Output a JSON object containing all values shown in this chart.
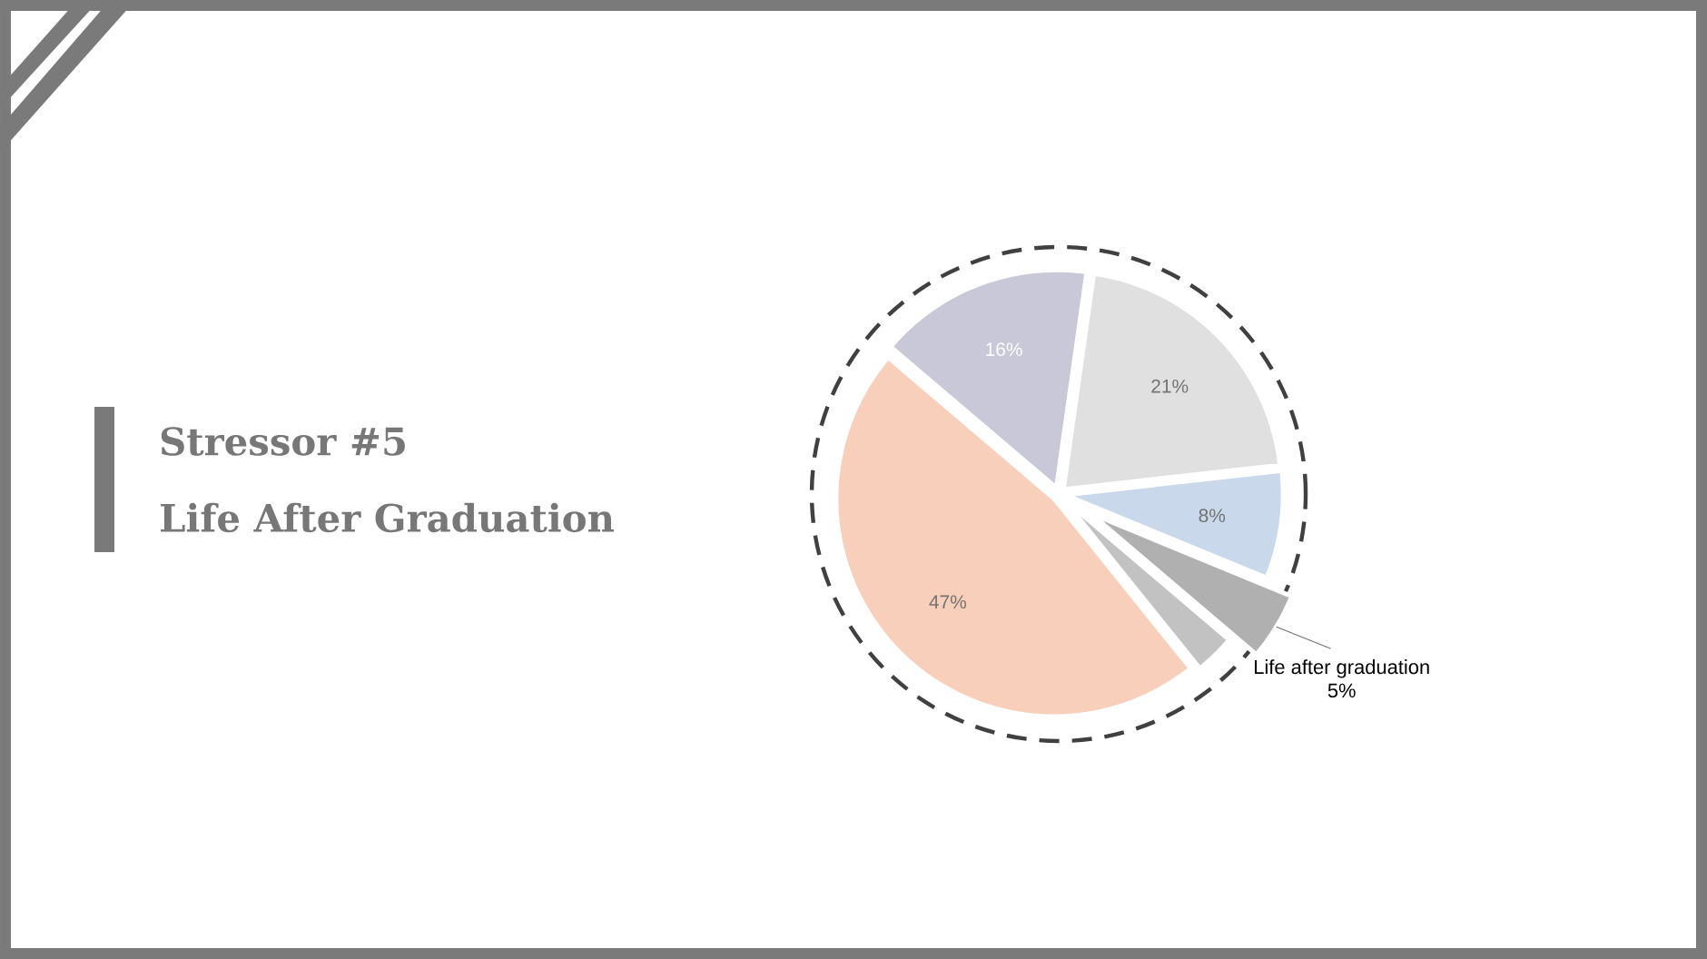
{
  "chart_data": {
    "type": "pie",
    "title": "Stressor #5",
    "subtitle": "Life After Graduation",
    "categories": [
      null,
      null,
      "Life after graduation",
      null,
      null,
      null
    ],
    "values": [
      21,
      8,
      5,
      3,
      47,
      16
    ],
    "colors": [
      "#e0e0e0",
      "#c9d8ea",
      "#b0b0b0",
      "#c2c2c2",
      "#f8cfbb",
      "#c8c8d8"
    ],
    "value_labels": [
      "21%",
      "8%",
      "5%",
      null,
      "47%",
      "16%"
    ]
  }
}
